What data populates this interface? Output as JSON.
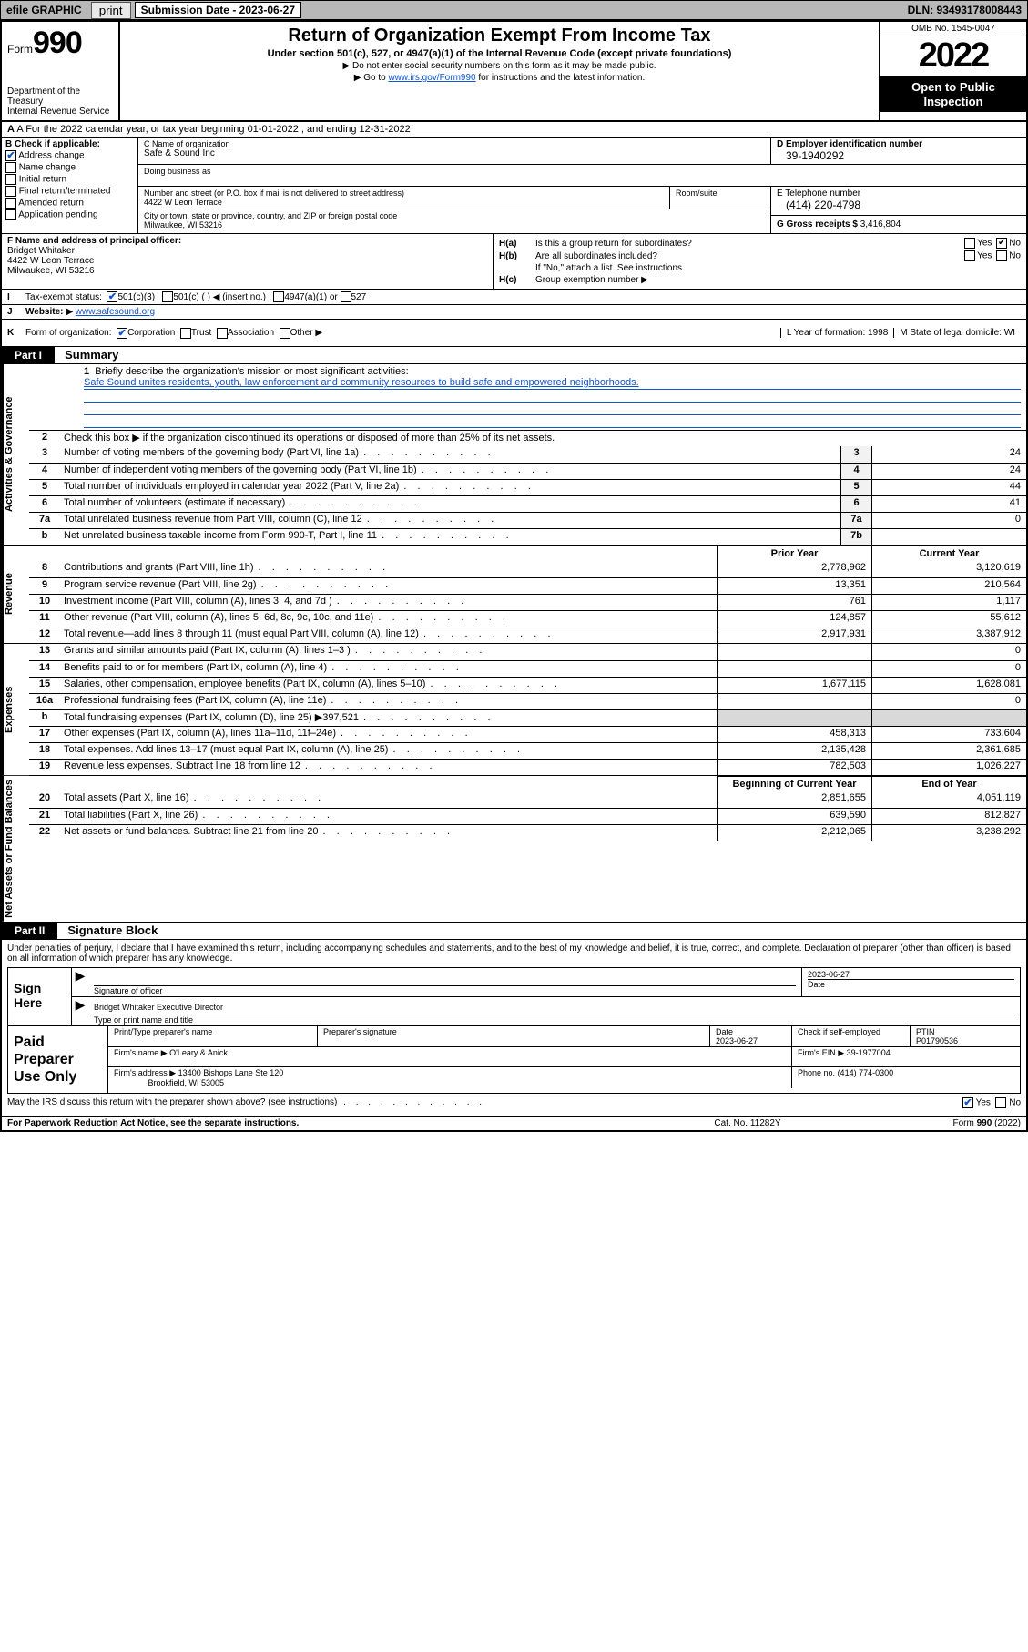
{
  "topbar": {
    "efile": "efile GRAPHIC",
    "print": "print",
    "subdate_lbl": "Submission Date - 2023-06-27",
    "dln": "DLN: 93493178008443"
  },
  "header": {
    "form_word": "Form",
    "form_num": "990",
    "dept": "Department of the Treasury",
    "irs": "Internal Revenue Service",
    "title": "Return of Organization Exempt From Income Tax",
    "sub": "Under section 501(c), 527, or 4947(a)(1) of the Internal Revenue Code (except private foundations)",
    "note1": "▶ Do not enter social security numbers on this form as it may be made public.",
    "note2_a": "▶ Go to ",
    "note2_link": "www.irs.gov/Form990",
    "note2_b": " for instructions and the latest information.",
    "omb": "OMB No. 1545-0047",
    "year": "2022",
    "otp1": "Open to Public",
    "otp2": "Inspection"
  },
  "row_a": "A For the 2022 calendar year, or tax year beginning 01-01-2022   , and ending 12-31-2022",
  "col_b": {
    "hdr": "B Check if applicable:",
    "addr_change": "Address change",
    "name_change": "Name change",
    "initial": "Initial return",
    "final": "Final return/terminated",
    "amended": "Amended return",
    "app_pending": "Application pending"
  },
  "col_c": {
    "name_lbl": "C Name of organization",
    "name": "Safe & Sound Inc",
    "dba_lbl": "Doing business as",
    "street_lbl": "Number and street (or P.O. box if mail is not delivered to street address)",
    "street": "4422 W Leon Terrace",
    "room_lbl": "Room/suite",
    "city_lbl": "City or town, state or province, country, and ZIP or foreign postal code",
    "city": "Milwaukee, WI  53216"
  },
  "col_d": {
    "lbl": "D Employer identification number",
    "val": "39-1940292"
  },
  "col_e": {
    "lbl": "E Telephone number",
    "val": "(414) 220-4798"
  },
  "col_g": {
    "lbl": "G Gross receipts $",
    "val": "3,416,804"
  },
  "col_f": {
    "lbl": "F Name and address of principal officer:",
    "name": "Bridget Whitaker",
    "addr1": "4422 W Leon Terrace",
    "addr2": "Milwaukee, WI  53216"
  },
  "col_h": {
    "a_lbl": "H(a)",
    "a_txt": "Is this a group return for subordinates?",
    "b_lbl": "H(b)",
    "b_txt": "Are all subordinates included?",
    "b_note": "If \"No,\" attach a list. See instructions.",
    "c_lbl": "H(c)",
    "c_txt": "Group exemption number ▶"
  },
  "row_i": {
    "lbl": "I",
    "txt": "Tax-exempt status:",
    "o1": "501(c)(3)",
    "o2": "501(c) (  ) ◀ (insert no.)",
    "o3": "4947(a)(1) or",
    "o4": "527"
  },
  "row_j": {
    "lbl": "J",
    "txt": "Website: ▶",
    "url": "www.safesound.org"
  },
  "row_k": {
    "lbl": "K",
    "txt": "Form of organization:",
    "o1": "Corporation",
    "o2": "Trust",
    "o3": "Association",
    "o4": "Other ▶",
    "l_lbl": "L Year of formation: 1998",
    "m_lbl": "M State of legal domicile: WI"
  },
  "part1": {
    "hdr": "Part I",
    "title": "Summary",
    "q1": "Briefly describe the organization's mission or most significant activities:",
    "mission": "Safe Sound unites residents, youth, law enforcement and community resources to build safe and empowered neighborhoods.",
    "q2": "Check this box ▶       if the organization discontinued its operations or disposed of more than 25% of its net assets.",
    "vtab_ag": "Activities & Governance",
    "vtab_rev": "Revenue",
    "vtab_exp": "Expenses",
    "vtab_na": "Net Assets or Fund Balances",
    "rows_ag": [
      {
        "n": "3",
        "t": "Number of voting members of the governing body (Part VI, line 1a)",
        "cn": "3",
        "cv": "24"
      },
      {
        "n": "4",
        "t": "Number of independent voting members of the governing body (Part VI, line 1b)",
        "cn": "4",
        "cv": "24"
      },
      {
        "n": "5",
        "t": "Total number of individuals employed in calendar year 2022 (Part V, line 2a)",
        "cn": "5",
        "cv": "44"
      },
      {
        "n": "6",
        "t": "Total number of volunteers (estimate if necessary)",
        "cn": "6",
        "cv": "41"
      },
      {
        "n": "7a",
        "t": "Total unrelated business revenue from Part VIII, column (C), line 12",
        "cn": "7a",
        "cv": "0"
      },
      {
        "n": "b",
        "t": "Net unrelated business taxable income from Form 990-T, Part I, line 11",
        "cn": "7b",
        "cv": ""
      }
    ],
    "hdr_prior": "Prior Year",
    "hdr_curr": "Current Year",
    "rows_rev": [
      {
        "n": "8",
        "t": "Contributions and grants (Part VIII, line 1h)",
        "c1": "2,778,962",
        "c2": "3,120,619"
      },
      {
        "n": "9",
        "t": "Program service revenue (Part VIII, line 2g)",
        "c1": "13,351",
        "c2": "210,564"
      },
      {
        "n": "10",
        "t": "Investment income (Part VIII, column (A), lines 3, 4, and 7d )",
        "c1": "761",
        "c2": "1,117"
      },
      {
        "n": "11",
        "t": "Other revenue (Part VIII, column (A), lines 5, 6d, 8c, 9c, 10c, and 11e)",
        "c1": "124,857",
        "c2": "55,612"
      },
      {
        "n": "12",
        "t": "Total revenue—add lines 8 through 11 (must equal Part VIII, column (A), line 12)",
        "c1": "2,917,931",
        "c2": "3,387,912"
      }
    ],
    "rows_exp": [
      {
        "n": "13",
        "t": "Grants and similar amounts paid (Part IX, column (A), lines 1–3 )",
        "c1": "",
        "c2": "0"
      },
      {
        "n": "14",
        "t": "Benefits paid to or for members (Part IX, column (A), line 4)",
        "c1": "",
        "c2": "0"
      },
      {
        "n": "15",
        "t": "Salaries, other compensation, employee benefits (Part IX, column (A), lines 5–10)",
        "c1": "1,677,115",
        "c2": "1,628,081"
      },
      {
        "n": "16a",
        "t": "Professional fundraising fees (Part IX, column (A), line 11e)",
        "c1": "",
        "c2": "0"
      },
      {
        "n": "b",
        "t": "Total fundraising expenses (Part IX, column (D), line 25) ▶397,521",
        "c1": "grey",
        "c2": "grey"
      },
      {
        "n": "17",
        "t": "Other expenses (Part IX, column (A), lines 11a–11d, 11f–24e)",
        "c1": "458,313",
        "c2": "733,604"
      },
      {
        "n": "18",
        "t": "Total expenses. Add lines 13–17 (must equal Part IX, column (A), line 25)",
        "c1": "2,135,428",
        "c2": "2,361,685"
      },
      {
        "n": "19",
        "t": "Revenue less expenses. Subtract line 18 from line 12",
        "c1": "782,503",
        "c2": "1,026,227"
      }
    ],
    "hdr_boy": "Beginning of Current Year",
    "hdr_eoy": "End of Year",
    "rows_na": [
      {
        "n": "20",
        "t": "Total assets (Part X, line 16)",
        "c1": "2,851,655",
        "c2": "4,051,119"
      },
      {
        "n": "21",
        "t": "Total liabilities (Part X, line 26)",
        "c1": "639,590",
        "c2": "812,827"
      },
      {
        "n": "22",
        "t": "Net assets or fund balances. Subtract line 21 from line 20",
        "c1": "2,212,065",
        "c2": "3,238,292"
      }
    ]
  },
  "part2": {
    "hdr": "Part II",
    "title": "Signature Block",
    "decl": "Under penalties of perjury, I declare that I have examined this return, including accompanying schedules and statements, and to the best of my knowledge and belief, it is true, correct, and complete. Declaration of preparer (other than officer) is based on all information of which preparer has any knowledge.",
    "sign_here": "Sign Here",
    "sig_officer": "Signature of officer",
    "sig_date": "2023-06-27",
    "date_lbl": "Date",
    "officer_name": "Bridget Whitaker  Executive Director",
    "type_name": "Type or print name and title",
    "paid": "Paid Preparer Use Only",
    "pname_lbl": "Print/Type preparer's name",
    "psig_lbl": "Preparer's signature",
    "pdate_lbl": "Date",
    "pdate": "2023-06-27",
    "pcheck_lbl": "Check       if self-employed",
    "ptin_lbl": "PTIN",
    "ptin": "P01790536",
    "firm_name_lbl": "Firm's name    ▶",
    "firm_name": "O'Leary & Anick",
    "firm_ein_lbl": "Firm's EIN ▶",
    "firm_ein": "39-1977004",
    "firm_addr_lbl": "Firm's address ▶",
    "firm_addr1": "13400 Bishops Lane Ste 120",
    "firm_addr2": "Brookfield, WI  53005",
    "phone_lbl": "Phone no.",
    "phone": "(414) 774-0300",
    "discuss": "May the IRS discuss this return with the preparer shown above? (see instructions)"
  },
  "footer": {
    "f1": "For Paperwork Reduction Act Notice, see the separate instructions.",
    "f2": "Cat. No. 11282Y",
    "f3": "Form 990 (2022)"
  }
}
